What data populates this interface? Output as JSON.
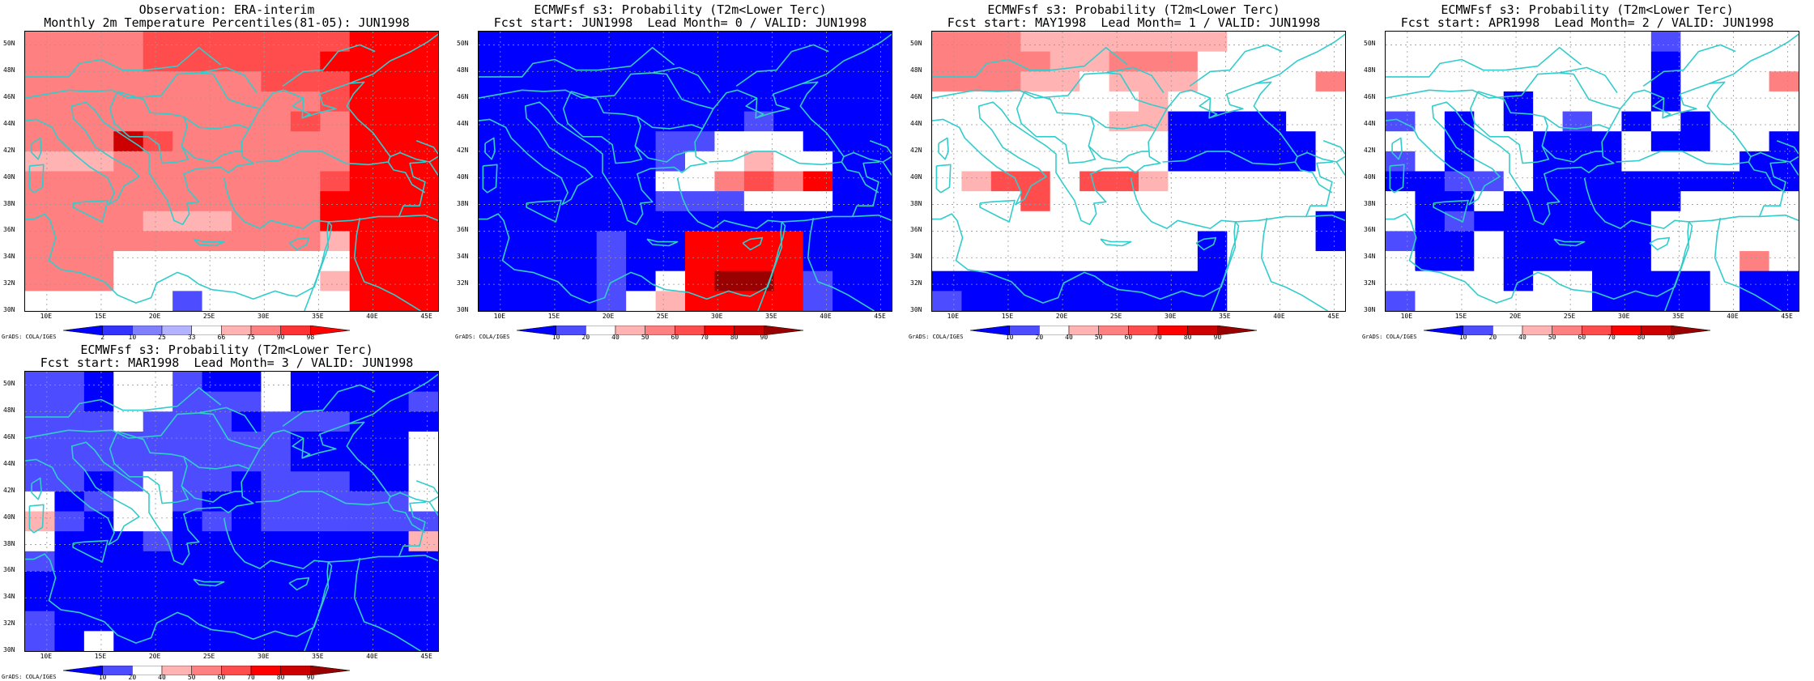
{
  "panels": [
    {
      "title1": "Observation: ERA-interim",
      "title2": "Monthly 2m Temperature Percentiles(81-05): JUN1998",
      "colorbar": {
        "labels": [
          "2",
          "10",
          "25",
          "33",
          "66",
          "75",
          "90",
          "98"
        ],
        "colors": [
          "#0000ff",
          "#3333ff",
          "#8080ff",
          "#b3b3ff",
          "#ffffff",
          "#ffb3b3",
          "#ff8080",
          "#ff3333",
          "#ff0000"
        ]
      },
      "grid": [
        "ppppPPPPPPPRRR",
        "ppppPPPPPPRRRR",
        "ppppppppPPPRRR",
        "ppppppppppPRRR",
        "pppppppppPpRRR",
        "pppcPppppppRRR",
        "lllppppppppRRR",
        "ppppppppppPRRR",
        "ppppppppppRRRR",
        "pppplllpppRRRR",
        "pppppppppplRRR",
        "pppwwwwwwwwRRR",
        "pppwwwwwwwlRRR",
        "wwwwwbwwwwwRRR"
      ]
    },
    {
      "title1": "ECMWFsf s3: Probability (T2m<Lower Terc)",
      "title2": "Fcst start: JUN1998  Lead Month= 0 / VALID: JUN1998",
      "colorbar": {
        "labels": [
          "10",
          "20",
          "40",
          "50",
          "60",
          "70",
          "80",
          "90"
        ],
        "colors": [
          "#0000ff",
          "#4d4dff",
          "#ffffff",
          "#ffb3b3",
          "#ff8080",
          "#ff4d4d",
          "#ff0000",
          "#cc0000",
          "#990000"
        ]
      },
      "grid": [
        "BBBBBBBBBBBBBB",
        "BBBBBBBBBBBBBB",
        "BBBBBBBBBBBBBB",
        "BBBBBBBBBBBBBB",
        "BBBBBBBBBbBBBB",
        "BBBBBBbbwwwBBB",
        "BBBBBBbwwlwwBB",
        "BBBBBBwwsmsRBB",
        "BBBBBBbbbwwwBB",
        "BBBBBBBBBBBBBB",
        "BBBBbBBRRRRBBB",
        "BBBBbBBRRRRBBB",
        "BBBBbBwRDDRbBB",
        "BBBBbwlRRRRbBB"
      ]
    },
    {
      "title1": "ECMWFsf s3: Probability (T2m<Lower Terc)",
      "title2": "Fcst start: MAY1998  Lead Month= 1 / VALID: JUN1998",
      "colorbar": {
        "labels": [
          "10",
          "20",
          "40",
          "50",
          "60",
          "70",
          "80",
          "90"
        ],
        "colors": [
          "#0000ff",
          "#4d4dff",
          "#ffffff",
          "#ffb3b3",
          "#ff8080",
          "#ff4d4d",
          "#ff0000",
          "#cc0000",
          "#990000"
        ]
      },
      "grid": [
        "ppplllllllwwww",
        "ppppllpppwwwww",
        "pppllwlllwwwws",
        "wwwwwwwlwwwwww",
        "wwwwwwllBBBBww",
        "wwwwwwwwBBBBBw",
        "wwwwwwwwBBBBBw",
        "wlmmwmmlwwwwww",
        "wwwmwwwwwwwwww",
        "wwwwwwwwwwwwwB",
        "wwwwwwwwwBwwwB",
        "wwwwwwwwwBwwww",
        "BBBBBBBBBBwwww",
        "bBBBBBBBBBwwww"
      ]
    },
    {
      "title1": "ECMWFsf s3: Probability (T2m<Lower Terc)",
      "title2": "Fcst start: APR1998  Lead Month= 2 / VALID: JUN1998",
      "colorbar": {
        "labels": [
          "10",
          "20",
          "40",
          "50",
          "60",
          "70",
          "80",
          "90"
        ],
        "colors": [
          "#0000ff",
          "#4d4dff",
          "#ffffff",
          "#ffb3b3",
          "#ff8080",
          "#ff4d4d",
          "#ff0000",
          "#cc0000",
          "#990000"
        ]
      },
      "grid": [
        "wwwwwwwwwbwwww",
        "wwwwwwwwwBwwww",
        "wwwwwwwwwBwwwp",
        "wwwwBwwwwBwwww",
        "bwBwBwbwBwBwww",
        "wwBwwBBBwBBwwB",
        "bwBwwBBBwwwwBB",
        "BBbbwBBBBBBBBB",
        "wBBwBBBBBBwwww",
        "wBbBBBBBBwwwww",
        "bBBwBBBBBwwwww",
        "wBBwBBBBBwwwpw",
        "wwwwBwwBBBBwBB",
        "bwwwwwwBBBBwBB"
      ]
    },
    {
      "title1": "ECMWFsf s3: Probability (T2m<Lower Terc)",
      "title2": "Fcst start: MAR1998  Lead Month= 3 / VALID: JUN1998",
      "colorbar": {
        "labels": [
          "10",
          "20",
          "40",
          "50",
          "60",
          "70",
          "80",
          "90"
        ],
        "colors": [
          "#0000ff",
          "#4d4dff",
          "#ffffff",
          "#ffb3b3",
          "#ff8080",
          "#ff4d4d",
          "#ff0000",
          "#cc0000",
          "#990000"
        ]
      },
      "grid": [
        "bbBwwbBBwBBBBB",
        "bbBwwbbbwBBBBb",
        "bbbwbbbBbbbBBB",
        "bbbbbbbbbBBBBw",
        "bbbbbbbbbBBBBw",
        "bbBbwbbBbbbBBw",
        "wBbwwbBBbbbbbw",
        "lbBwwBbBbbbbbb",
        "wBBBbBBBBBBBBl",
        "bBBBBBBBBBBBBB",
        "BBBBBBBBBBBBBB",
        "BBBBBBBBBBBBBB",
        "bBBBBBBBBBBBBB",
        "bBwBBBBBBBBBBB"
      ]
    }
  ],
  "map": {
    "lat_labels": [
      "50N",
      "48N",
      "46N",
      "44N",
      "42N",
      "40N",
      "38N",
      "36N",
      "34N",
      "32N",
      "30N"
    ],
    "lon_labels": [
      "10E",
      "15E",
      "20E",
      "25E",
      "30E",
      "35E",
      "40E",
      "45E"
    ],
    "lon_range": [
      8,
      46
    ],
    "lat_range": [
      30,
      51
    ],
    "coast_color": "#33cccc",
    "cell_colors": {
      "p": "#ff8080",
      "P": "#ff4d4d",
      "R": "#ff0000",
      "l": "#ffb3b3",
      "c": "#cc0000",
      "w": "#ffffff",
      "b": "#4d4dff",
      "B": "#0000ff",
      "s": "#ff8080",
      "m": "#ff4d4d",
      "D": "#990000"
    }
  },
  "credit": "GrADS: COLA/IGES"
}
